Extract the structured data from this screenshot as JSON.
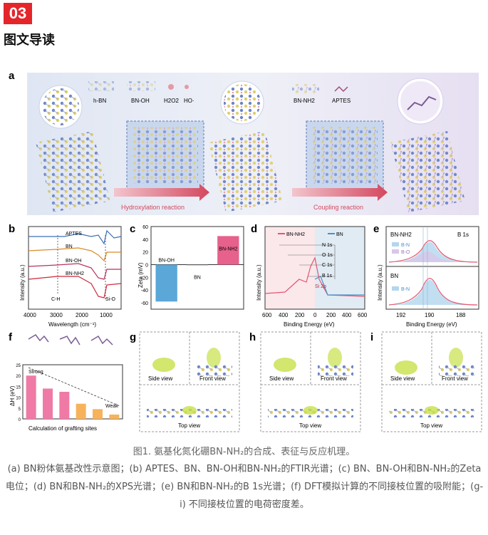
{
  "header": {
    "badge": "03",
    "title": "图文导读"
  },
  "panel_a": {
    "letter": "a",
    "labels": [
      "h-BN",
      "BN-OH",
      "H2O2",
      "HO·",
      "BN-NH2",
      "APTES"
    ],
    "arrow1": "Hydroxylation reaction",
    "arrow2": "Coupling reaction"
  },
  "panel_b": {
    "letter": "b",
    "series": [
      "APTES",
      "BN",
      "BN-OH",
      "BN-NH2"
    ],
    "annotations": [
      "C-H",
      "Si-O"
    ],
    "ylabel": "Intensity (a.u.)",
    "xlabel": "Wavelength (cm⁻¹)",
    "ticks": [
      "4000",
      "3000",
      "2000",
      "1000"
    ],
    "colors": [
      "#3b6fb6",
      "#d98a2b",
      "#b8325a",
      "#d0263a"
    ]
  },
  "chart_data": [
    {
      "type": "bar",
      "panel": "c",
      "categories": [
        "BN-OH",
        "BN",
        "BN-NH2"
      ],
      "values": [
        -58,
        0,
        45
      ],
      "ylabel": "Zeta (mV)",
      "ylim": [
        -70,
        60
      ],
      "yticks": [
        "60",
        "40",
        "20",
        "0",
        "-20",
        "-40",
        "-60"
      ],
      "colors": [
        "#5aa7d8",
        "#888888",
        "#e6618c"
      ]
    },
    {
      "type": "bar",
      "panel": "f",
      "values": [
        20,
        14,
        12.5,
        7,
        4.5,
        2
      ],
      "ylabel": "ΔH (eV)",
      "xlabel": "Calculation of grafting sites",
      "ylim": [
        0,
        25
      ],
      "yticks": [
        "25",
        "20",
        "15",
        "10",
        "5",
        "0"
      ],
      "colors": [
        "#f07aa6",
        "#f07aa6",
        "#f07aa6",
        "#f7b35c",
        "#f7b35c",
        "#f7b35c"
      ]
    }
  ],
  "panel_c": {
    "letter": "c"
  },
  "panel_d": {
    "letter": "d",
    "legend": [
      "BN-NH2",
      "BN"
    ],
    "peaks": [
      "N 1s",
      "O 1s",
      "C 1s",
      "B 1s",
      "Si 2p"
    ],
    "ylabel": "Intensity (a.u.)",
    "xlabel": "Binding Energy (eV)",
    "ticks": [
      "600",
      "400",
      "200",
      "0",
      "200",
      "400",
      "600"
    ]
  },
  "panel_e": {
    "letter": "e",
    "title": "B 1s",
    "top_label": "BN-NH2",
    "bottom_label": "BN",
    "legend": [
      "B-N",
      "B-O"
    ],
    "ylabel": "Intensity (a.u.)",
    "xlabel": "Binding Energy (eV)",
    "ticks": [
      "192",
      "190",
      "188"
    ]
  },
  "panel_f": {
    "letter": "f",
    "strong": "Strong",
    "weak": "Weak"
  },
  "panel_g": {
    "letter": "g",
    "side": "Side view",
    "front": "Front view",
    "top": "Top view"
  },
  "panel_h": {
    "letter": "h",
    "side": "Side view",
    "front": "Front view",
    "top": "Top view"
  },
  "panel_i": {
    "letter": "i",
    "side": "Side view",
    "front": "Front view",
    "top": "Top view"
  },
  "caption": {
    "title": "图1. 氨基化氮化硼BN-NH₂的合成、表征与反应机理。",
    "body": "(a) BN粉体氨基改性示意图；(b) APTES、BN、BN-OH和BN-NH₂的FTIR光谱；(c) BN、BN-OH和BN-NH₂的Zeta电位；(d) BN和BN-NH₂的XPS光谱；(e) BN和BN-NH₂的B 1s光谱；(f) DFT模拟计算的不同接枝位置的吸附能；(g-i) 不同接枝位置的电荷密度差。"
  }
}
